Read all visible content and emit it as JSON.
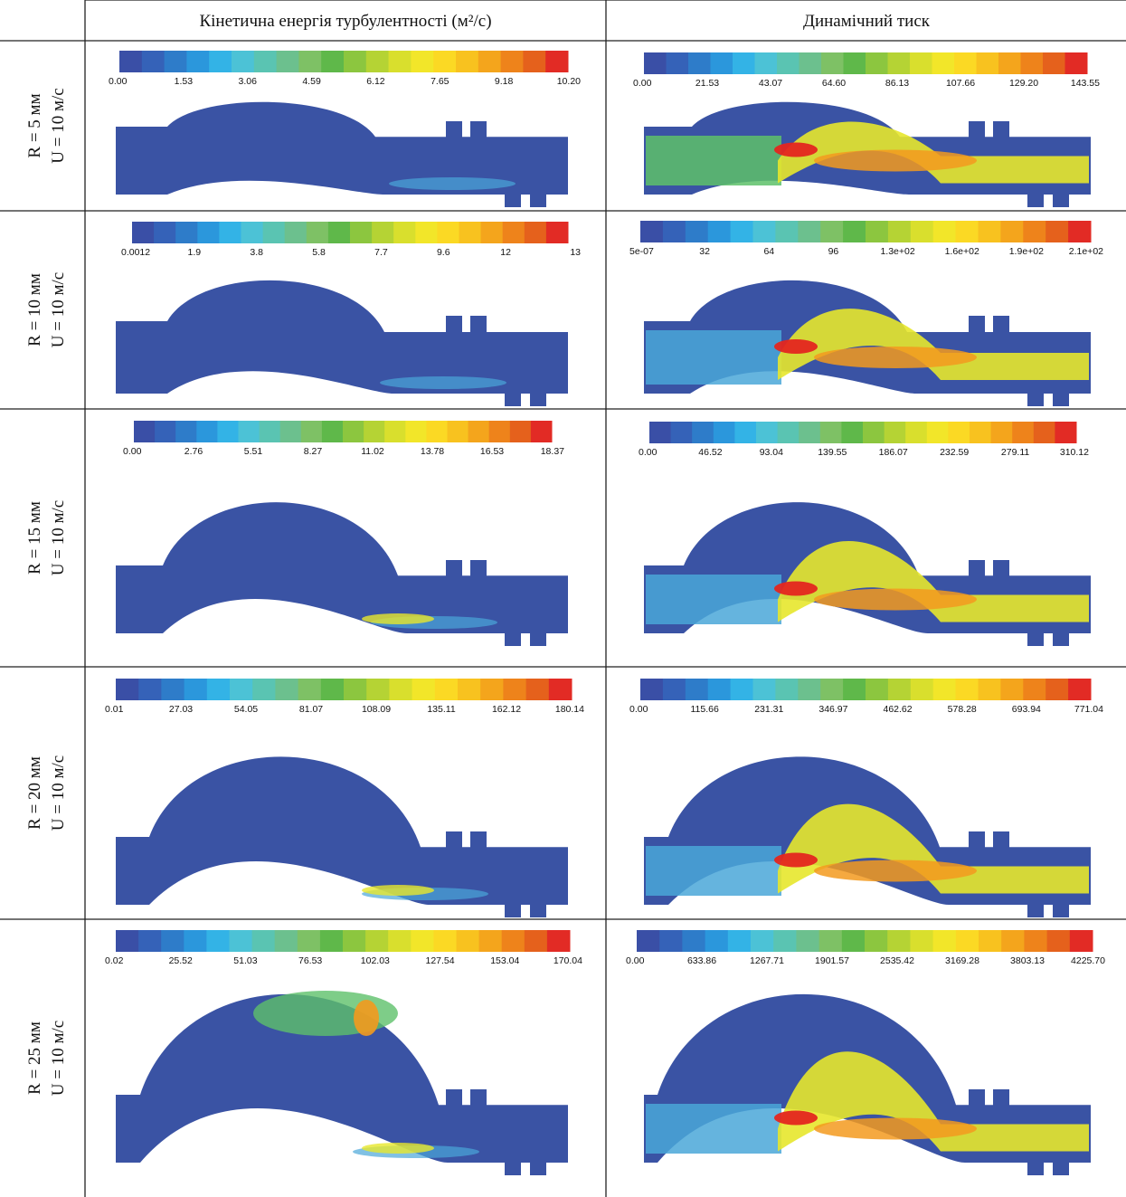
{
  "headers": {
    "col1": "Кінетична енергія турбулентності (м²/с)",
    "col2": "Динамічний тиск"
  },
  "rows": [
    {
      "r_label": "R = 5 мм",
      "u_label": "U = 10 м/с",
      "tke_ticks": [
        "0.00",
        "1.53",
        "3.06",
        "4.59",
        "6.12",
        "7.65",
        "9.18",
        "10.20"
      ],
      "pressure_ticks": [
        "0.00",
        "21.53",
        "43.07",
        "64.60",
        "86.13",
        "107.66",
        "129.20",
        "143.55"
      ]
    },
    {
      "r_label": "R = 10 мм",
      "u_label": "U = 10 м/с",
      "tke_ticks": [
        "0.0012",
        "1.9",
        "3.8",
        "5.8",
        "7.7",
        "9.6",
        "12",
        "13"
      ],
      "pressure_ticks": [
        "5e-07",
        "32",
        "64",
        "96",
        "1.3e+02",
        "1.6e+02",
        "1.9e+02",
        "2.1e+02"
      ]
    },
    {
      "r_label": "R = 15 мм",
      "u_label": "U = 10 м/с",
      "tke_ticks": [
        "0.00",
        "2.76",
        "5.51",
        "8.27",
        "11.02",
        "13.78",
        "16.53",
        "18.37"
      ],
      "pressure_ticks": [
        "0.00",
        "46.52",
        "93.04",
        "139.55",
        "186.07",
        "232.59",
        "279.11",
        "310.12"
      ]
    },
    {
      "r_label": "R = 20 мм",
      "u_label": "U = 10 м/с",
      "tke_ticks": [
        "0.01",
        "27.03",
        "54.05",
        "81.07",
        "108.09",
        "135.11",
        "162.12",
        "180.14"
      ],
      "pressure_ticks": [
        "0.00",
        "115.66",
        "231.31",
        "346.97",
        "462.62",
        "578.28",
        "693.94",
        "771.04"
      ]
    },
    {
      "r_label": "R = 25 мм",
      "u_label": "U = 10 м/с",
      "tke_ticks": [
        "0.02",
        "25.52",
        "51.03",
        "76.53",
        "102.03",
        "127.54",
        "153.04",
        "170.04"
      ],
      "pressure_ticks": [
        "0.00",
        "633.86",
        "1267.71",
        "1901.57",
        "2535.42",
        "3169.28",
        "3803.13",
        "4225.70"
      ]
    }
  ],
  "colormap": [
    "#3a4fa6",
    "#3562b8",
    "#2e7cc9",
    "#2b97dc",
    "#33b3e6",
    "#4cc2d6",
    "#5ac4b2",
    "#6cc08e",
    "#7ec165",
    "#5fb84a",
    "#8cc63f",
    "#b5d334",
    "#d9df2d",
    "#f2e629",
    "#fbd924",
    "#f8c21f",
    "#f4a51c",
    "#ee831b",
    "#e5611c",
    "#e22b25"
  ],
  "field_colors": {
    "low": "#3a53a4",
    "mid_low": "#4aa7d8",
    "mid": "#5ec16a",
    "mid_high": "#e7e72c",
    "high": "#f39a1e",
    "peak": "#e4261f"
  }
}
